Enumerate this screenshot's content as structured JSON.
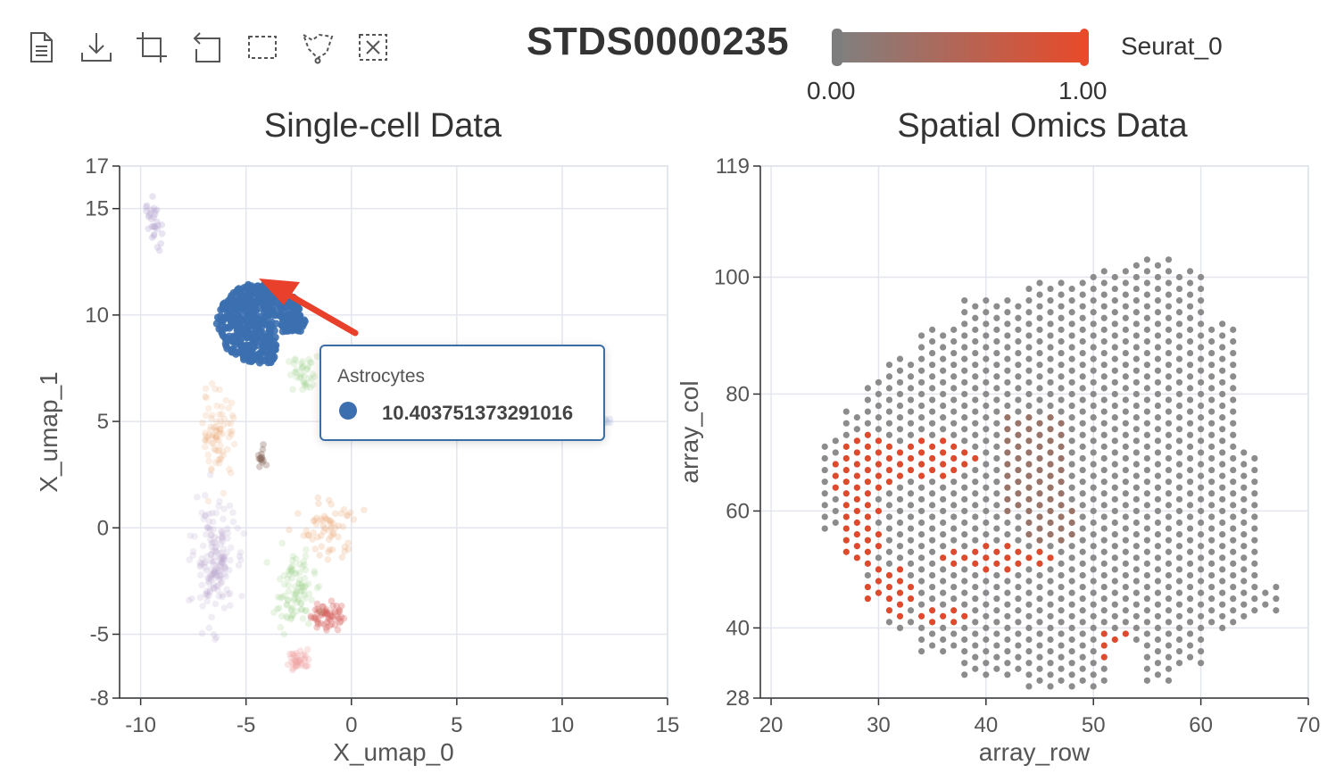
{
  "toolbar": {
    "tools": [
      "file-icon",
      "download-icon",
      "crop-icon",
      "undo-icon",
      "box-select-icon",
      "lasso-select-icon",
      "clear-selection-icon"
    ]
  },
  "header": {
    "title": "STDS0000235",
    "colorbar": {
      "min_label": "0.00",
      "max_label": "1.00",
      "label": "Seurat_0",
      "start_color": "#808080",
      "end_color": "#e84a2a"
    }
  },
  "colors": {
    "astrocytes": "#3b6fb0",
    "gray_spot": "#8c8c8c",
    "red_spot": "#dd4a2c",
    "grid": "#e4e6ee",
    "tooltip_border": "#3a6ea5"
  },
  "tooltip": {
    "title": "Astrocytes",
    "value": "10.403751373291016"
  },
  "chart_data": [
    {
      "type": "scatter",
      "title": "Single-cell Data",
      "xlabel": "X_umap_0",
      "ylabel": "X_umap_1",
      "xlim": [
        -11,
        15
      ],
      "ylim": [
        -8,
        17
      ],
      "xticks": [
        "-10",
        "-5",
        "0",
        "5",
        "10",
        "15"
      ],
      "yticks": [
        "17",
        "15",
        "10",
        "5",
        "0",
        "-5",
        "-8"
      ],
      "highlighted_series": "Astrocytes",
      "clusters": [
        {
          "name": "Astrocytes",
          "color": "#3b6fb0",
          "center": [
            -4.3,
            9.6
          ],
          "spread": [
            2.1,
            1.9
          ],
          "n": 520,
          "alpha": 0.9
        },
        {
          "color": "#e8a06a",
          "center": [
            -6.3,
            4.5
          ],
          "spread": [
            0.7,
            1.8
          ],
          "n": 80,
          "alpha": 0.18
        },
        {
          "color": "#b7a6cf",
          "center": [
            -6.5,
            -1.6
          ],
          "spread": [
            0.8,
            2.3
          ],
          "n": 170,
          "alpha": 0.2
        },
        {
          "color": "#9fd28f",
          "center": [
            -2.7,
            -3.0
          ],
          "spread": [
            0.8,
            1.4
          ],
          "n": 95,
          "alpha": 0.22
        },
        {
          "color": "#d66260",
          "center": [
            -1.2,
            -4.1
          ],
          "spread": [
            0.6,
            0.6
          ],
          "n": 60,
          "alpha": 0.32
        },
        {
          "color": "#f0a6a4",
          "center": [
            -2.5,
            -6.2
          ],
          "spread": [
            0.5,
            0.4
          ],
          "n": 40,
          "alpha": 0.28
        },
        {
          "color": "#e8a06a",
          "center": [
            -1.0,
            0.0
          ],
          "spread": [
            1.0,
            1.2
          ],
          "n": 60,
          "alpha": 0.22
        },
        {
          "color": "#b7a6cf",
          "center": [
            -9.4,
            14.3
          ],
          "spread": [
            0.3,
            1.0
          ],
          "n": 30,
          "alpha": 0.3
        },
        {
          "color": "#9fd28f",
          "center": [
            -2.2,
            7.2
          ],
          "spread": [
            0.7,
            0.7
          ],
          "n": 40,
          "alpha": 0.22
        },
        {
          "color": "#8c6d62",
          "center": [
            -4.3,
            3.2
          ],
          "spread": [
            0.2,
            0.4
          ],
          "n": 15,
          "alpha": 0.35
        },
        {
          "color": "#b8c2e6",
          "center": [
            12.2,
            5.0
          ],
          "spread": [
            0.3,
            0.1
          ],
          "n": 6,
          "alpha": 0.3
        }
      ]
    },
    {
      "type": "scatter",
      "title": "Spatial Omics Data",
      "xlabel": "array_row",
      "ylabel": "array_col",
      "xlim": [
        19,
        70
      ],
      "ylim": [
        28,
        119
      ],
      "xticks": [
        "20",
        "30",
        "40",
        "50",
        "60",
        "70"
      ],
      "yticks": [
        "119",
        "100",
        "80",
        "60",
        "40",
        "28"
      ],
      "color_by": "Seurat_0",
      "grid_points": "hexagonal spot array, row 25-67, col 30-104",
      "red_region_hint": "C-shaped band around rows 26-47, cols 40-76 plus small cluster near row 51-54, col 34-40"
    }
  ]
}
